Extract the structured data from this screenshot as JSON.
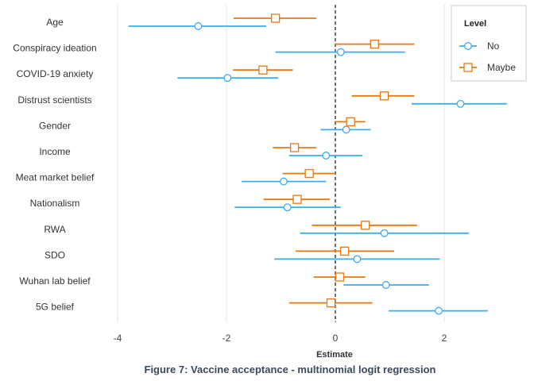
{
  "chart_data": {
    "type": "forest",
    "title": "",
    "caption": "Figure 7: Vaccine acceptance - multinomial logit regression",
    "xlabel": "Estimate",
    "ylabel": "",
    "xlim": [
      -4.4,
      3.4
    ],
    "xticks": [
      -4,
      -2,
      0,
      2
    ],
    "grid": true,
    "reference_line": 0,
    "legend": {
      "title": "Level",
      "position": "top-right",
      "entries": [
        "No",
        "Maybe"
      ]
    },
    "categories": [
      "Age",
      "Conspiracy ideation",
      "COVID-19 anxiety",
      "Distrust scientists",
      "Gender",
      "Income",
      "Meat market belief",
      "Nationalism",
      "RWA",
      "SDO",
      "Wuhan lab belief",
      "5G belief"
    ],
    "series": [
      {
        "name": "No",
        "color": "#3aaee8",
        "marker": "circle",
        "estimate": [
          -2.52,
          0.1,
          -1.98,
          2.3,
          0.2,
          -0.17,
          -0.95,
          -0.88,
          0.9,
          0.4,
          0.93,
          1.9
        ],
        "lower": [
          -3.8,
          -1.1,
          -2.9,
          1.4,
          -0.27,
          -0.85,
          -1.72,
          -1.85,
          -0.65,
          -1.12,
          0.15,
          0.98
        ],
        "upper": [
          -1.27,
          1.28,
          -1.05,
          3.15,
          0.65,
          0.5,
          -0.17,
          0.1,
          2.45,
          1.92,
          1.72,
          2.8
        ]
      },
      {
        "name": "Maybe",
        "color": "#e8780f",
        "marker": "square",
        "estimate": [
          -1.1,
          0.72,
          -1.33,
          0.9,
          0.28,
          -0.75,
          -0.48,
          -0.7,
          0.55,
          0.17,
          0.08,
          -0.08
        ],
        "lower": [
          -1.87,
          0.0,
          -1.88,
          0.3,
          0.0,
          -1.15,
          -0.97,
          -1.32,
          -0.43,
          -0.73,
          -0.4,
          -0.85
        ],
        "upper": [
          -0.35,
          1.45,
          -0.78,
          1.45,
          0.55,
          -0.35,
          0.0,
          -0.1,
          1.5,
          1.08,
          0.55,
          0.68
        ]
      }
    ]
  }
}
